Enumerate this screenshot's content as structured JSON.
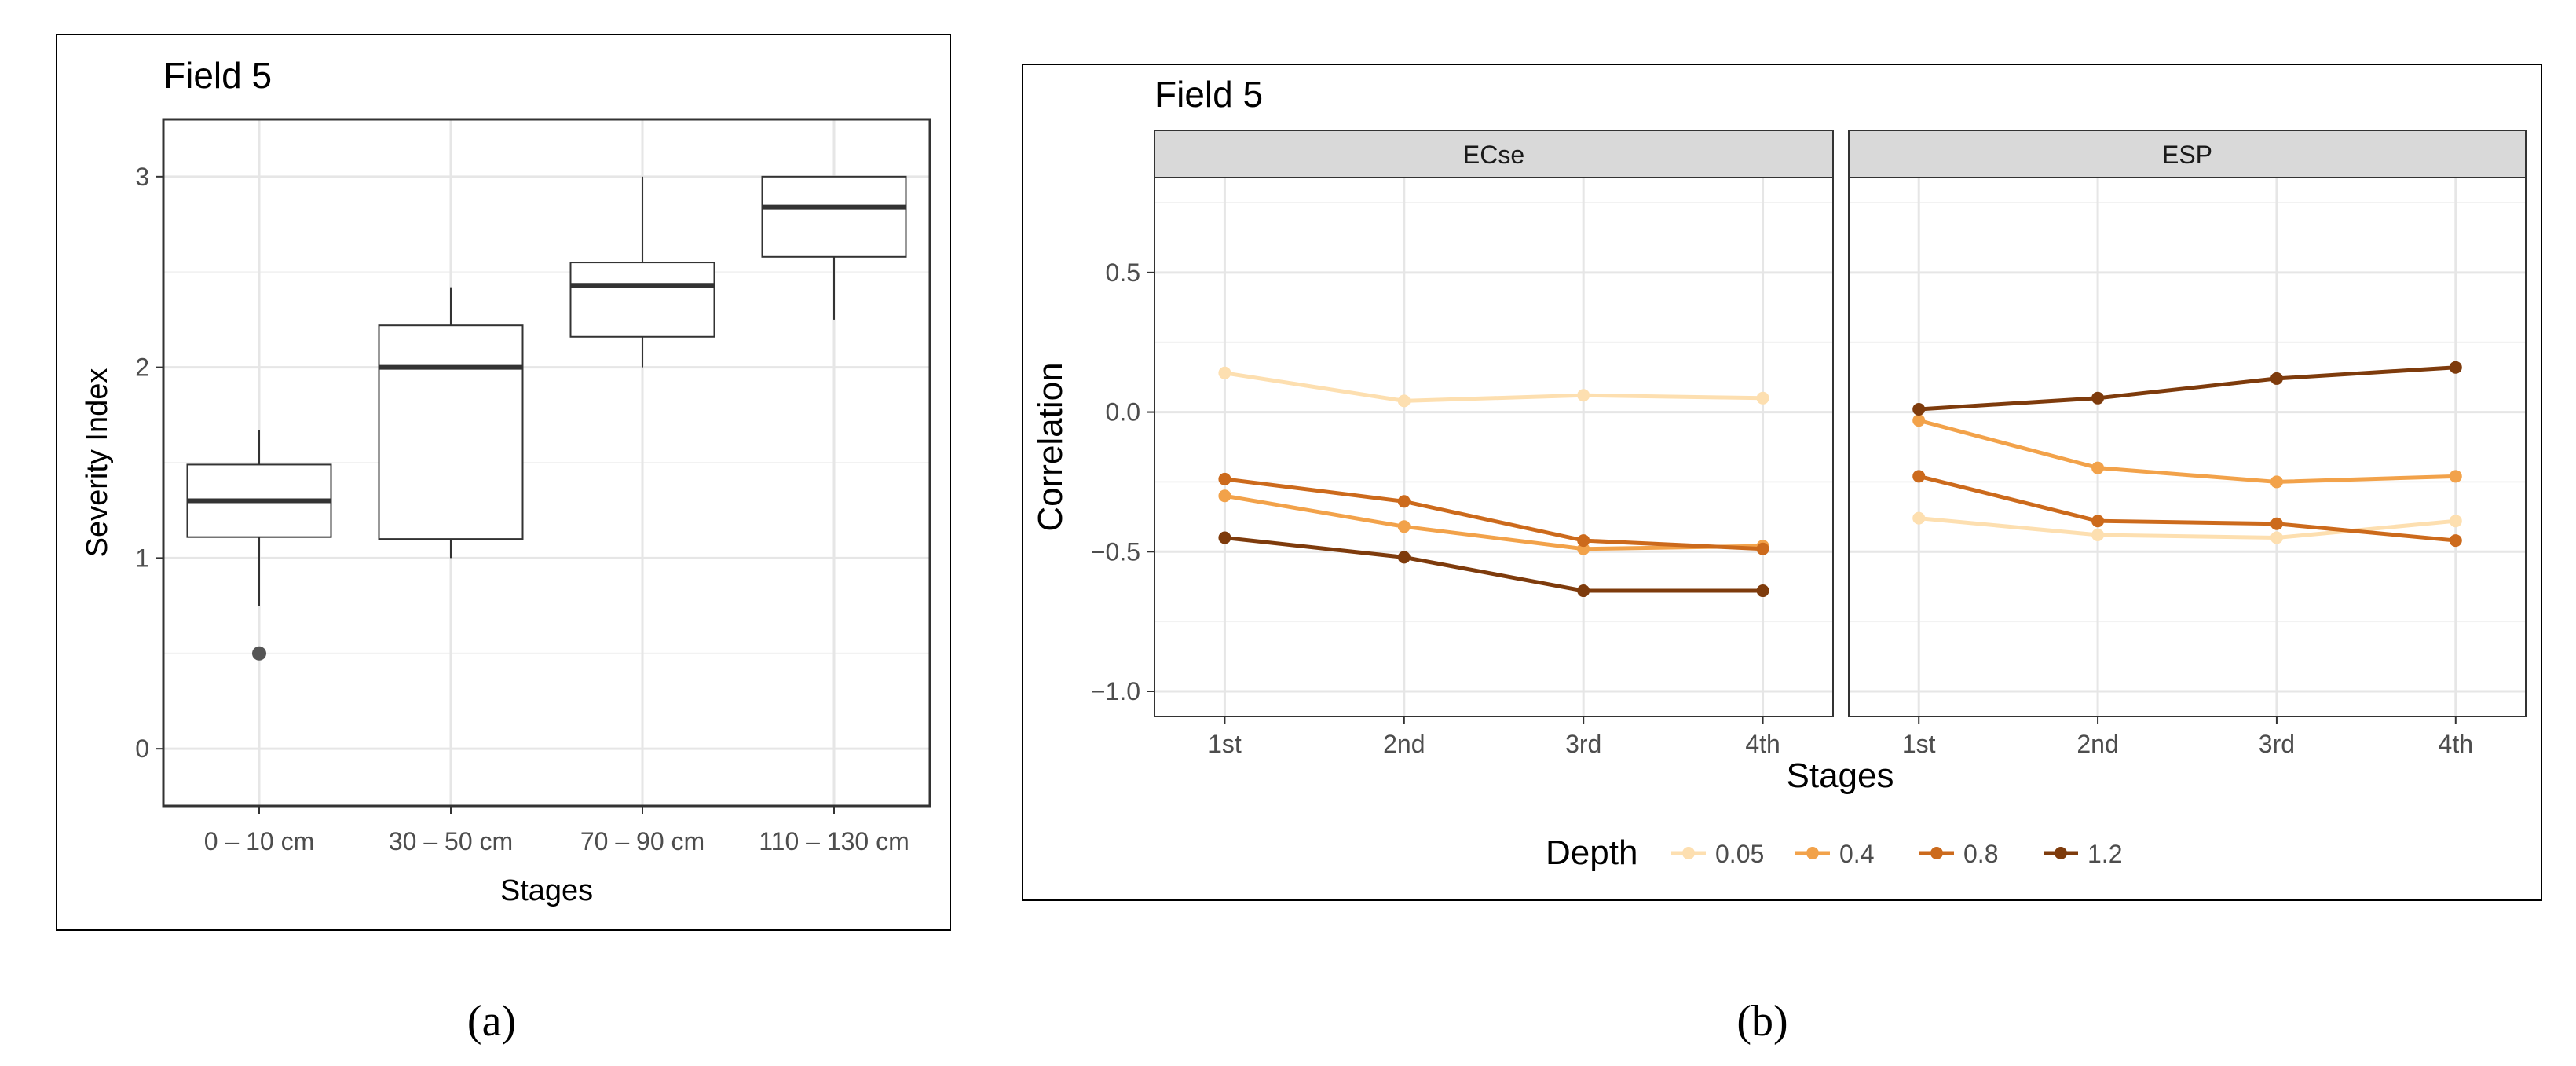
{
  "figure_labels": {
    "a": "(a)",
    "b": "(b)"
  },
  "chart_data": [
    {
      "type": "box",
      "title": "Field 5",
      "xlabel": "Stages",
      "ylabel": "Severity Index",
      "ylim": [
        -0.3,
        3.3
      ],
      "yticks": [
        0,
        1,
        2,
        3
      ],
      "ytick_labels": [
        "0",
        "1",
        "2",
        "3"
      ],
      "categories": [
        "0 – 10 cm",
        "30 – 50 cm",
        "70 – 90 cm",
        "110 – 130 cm"
      ],
      "boxes": [
        {
          "min": 0.75,
          "q1": 1.11,
          "median": 1.3,
          "q3": 1.49,
          "max": 1.67,
          "outliers": [
            0.5
          ]
        },
        {
          "min": 1.0,
          "q1": 1.1,
          "median": 2.0,
          "q3": 2.22,
          "max": 2.42,
          "outliers": []
        },
        {
          "min": 2.0,
          "q1": 2.16,
          "median": 2.43,
          "q3": 2.55,
          "max": 3.0,
          "outliers": []
        },
        {
          "min": 2.25,
          "q1": 2.58,
          "median": 2.84,
          "q3": 3.0,
          "max": 3.0,
          "outliers": []
        }
      ]
    },
    {
      "type": "line",
      "title": "Field 5",
      "xlabel": "Stages",
      "ylabel": "Correlation",
      "ylim": [
        -1.09,
        0.84
      ],
      "yticks": [
        0.5,
        0.0,
        -0.5,
        -1.0
      ],
      "ytick_labels": [
        "0.5",
        "0.0",
        "−0.5",
        "−1.0"
      ],
      "categories": [
        "1st",
        "2nd",
        "3rd",
        "4th"
      ],
      "legend_title": "Depth",
      "legend_position": "bottom",
      "series_colors": [
        "#fddfb0",
        "#f2a24a",
        "#cc6a1c",
        "#7e3b0c"
      ],
      "facets": [
        {
          "name": "ECse",
          "series": [
            {
              "name": "0.05",
              "values": [
                0.14,
                0.04,
                0.06,
                0.05
              ]
            },
            {
              "name": "0.4",
              "values": [
                -0.3,
                -0.41,
                -0.49,
                -0.48
              ]
            },
            {
              "name": "0.8",
              "values": [
                -0.24,
                -0.32,
                -0.46,
                -0.49
              ]
            },
            {
              "name": "1.2",
              "values": [
                -0.45,
                -0.52,
                -0.64,
                -0.64
              ]
            }
          ]
        },
        {
          "name": "ESP",
          "series": [
            {
              "name": "0.05",
              "values": [
                -0.38,
                -0.44,
                -0.45,
                -0.39
              ]
            },
            {
              "name": "0.4",
              "values": [
                -0.03,
                -0.2,
                -0.25,
                -0.23
              ]
            },
            {
              "name": "0.8",
              "values": [
                -0.23,
                -0.39,
                -0.4,
                -0.46
              ]
            },
            {
              "name": "1.2",
              "values": [
                0.01,
                0.05,
                0.12,
                0.16
              ]
            }
          ]
        }
      ]
    }
  ]
}
